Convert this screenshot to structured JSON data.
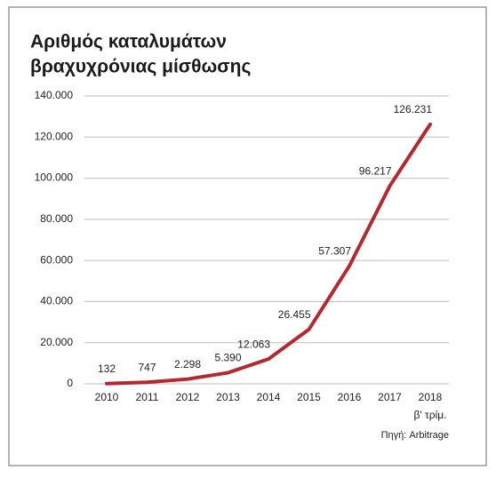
{
  "chart_data": {
    "type": "line",
    "title": [
      "Αριθμός καταλυμάτων",
      "βραχυχρόνιας μίσθωσης"
    ],
    "categories": [
      "2010",
      "2011",
      "2012",
      "2013",
      "2014",
      "2015",
      "2016",
      "2017",
      "2018"
    ],
    "category_note": "β' τρίμ.",
    "source": "Πηγή: Arbitrage",
    "series": [
      {
        "color": "#b5282e",
        "values": [
          132,
          747,
          2298,
          5390,
          12063,
          26455,
          57307,
          96217,
          126231
        ],
        "value_labels": [
          "132",
          "747",
          "2.298",
          "5.390",
          "12.063",
          "26.455",
          "57.307",
          "96.217",
          "126.231"
        ]
      }
    ],
    "ylim": [
      0,
      140000
    ],
    "yticks": [
      0,
      {
        "value": 20000,
        "label": "20.000"
      },
      {
        "value": 40000,
        "label": "40.000"
      },
      {
        "value": 60000,
        "label": "60.000"
      },
      {
        "value": 80000,
        "label": "80.000"
      },
      {
        "value": 100000,
        "label": "100.000"
      },
      {
        "value": 120000,
        "label": "120.000"
      },
      {
        "value": 140000,
        "label": "140.000"
      }
    ],
    "grid": true
  }
}
